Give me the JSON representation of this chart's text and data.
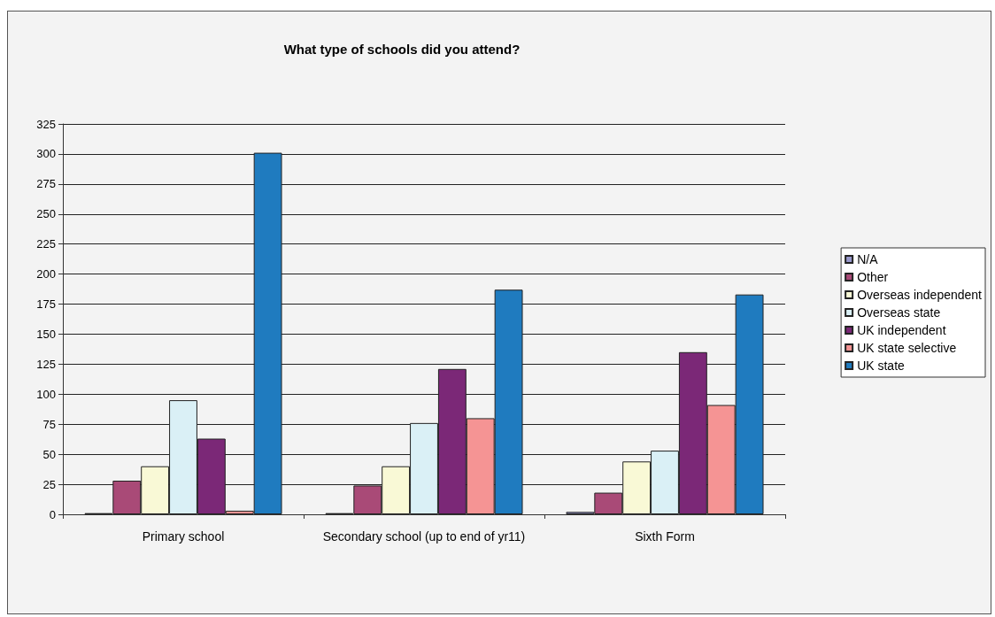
{
  "chart_data": {
    "type": "bar",
    "title": "What type of schools did you attend?",
    "categories": [
      "Primary school",
      "Secondary school (up to end of yr11)",
      "Sixth Form"
    ],
    "series": [
      {
        "name": "N/A",
        "color": "#9999cc",
        "values": [
          1,
          1,
          2
        ]
      },
      {
        "name": "Other",
        "color": "#a94a77",
        "values": [
          28,
          24,
          18
        ]
      },
      {
        "name": "Overseas independent",
        "color": "#f9f9d6",
        "values": [
          40,
          40,
          44
        ]
      },
      {
        "name": "Overseas state",
        "color": "#daf0f6",
        "values": [
          95,
          76,
          53
        ]
      },
      {
        "name": "UK independent",
        "color": "#7b2877",
        "values": [
          63,
          121,
          135
        ]
      },
      {
        "name": "UK state selective",
        "color": "#f59494",
        "values": [
          3,
          80,
          91
        ]
      },
      {
        "name": "UK state",
        "color": "#1f7bbf",
        "values": [
          301,
          187,
          183
        ]
      }
    ],
    "ylim": [
      0,
      325
    ],
    "yticks": [
      0,
      25,
      50,
      75,
      100,
      125,
      150,
      175,
      200,
      225,
      250,
      275,
      300,
      325
    ],
    "grid": "y",
    "legend": "right"
  }
}
